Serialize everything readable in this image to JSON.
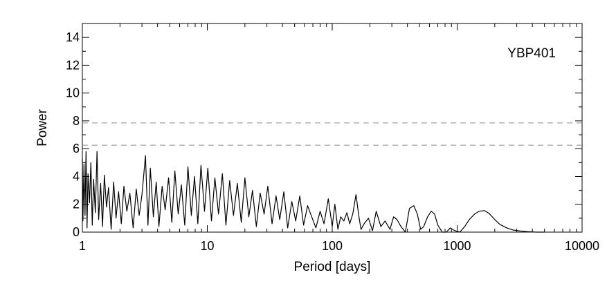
{
  "chart_data": {
    "type": "line",
    "title": "",
    "annotation": "YBP401",
    "xlabel": "Period [days]",
    "ylabel": "Power",
    "xscale": "log",
    "xlim": [
      1,
      10000
    ],
    "ylim": [
      0,
      15
    ],
    "xticks": [
      1,
      10,
      100,
      1000,
      10000
    ],
    "xtick_labels": [
      "1",
      "10",
      "100",
      "1000",
      "10000"
    ],
    "yticks": [
      0,
      2,
      4,
      6,
      8,
      10,
      12,
      14
    ],
    "ytick_labels": [
      "0",
      "2",
      "4",
      "6",
      "8",
      "10",
      "12",
      "14"
    ],
    "threshold_lines": [
      7.85,
      6.25
    ],
    "threshold_color": "#999999",
    "line_color": "#000000",
    "series": [
      {
        "x": [
          1.0,
          1.01,
          1.03,
          1.05,
          1.07,
          1.09,
          1.11,
          1.14,
          1.17,
          1.2,
          1.23,
          1.27,
          1.31,
          1.35,
          1.4,
          1.45,
          1.5,
          1.56,
          1.62,
          1.7,
          1.78,
          1.86,
          1.95,
          2.05,
          2.15,
          2.27,
          2.4,
          2.55,
          2.7,
          2.85,
          3.0,
          3.2,
          3.35,
          3.5,
          3.7,
          3.9,
          4.1,
          4.35,
          4.6,
          4.9,
          5.2,
          5.5,
          5.85,
          6.2,
          6.6,
          7.0,
          7.45,
          7.9,
          8.4,
          8.9,
          9.5,
          10.1,
          10.8,
          11.5,
          12.3,
          13.2,
          14.1,
          15.1,
          16.2,
          17.4,
          18.7,
          20.0,
          21.5,
          23.0,
          24.7,
          26.5,
          28.5,
          30.5,
          33.0,
          35.5,
          38.0,
          41.0,
          44.0,
          47.5,
          51.0,
          55.0,
          59.0,
          63.5,
          68.5,
          74.0,
          80.0,
          86.0,
          93.0,
          100.0,
          105.0,
          111.0,
          117.0,
          124.0,
          131.0,
          138.0,
          146.0,
          155.0,
          163.0,
          170.0,
          180.0,
          195.0,
          210.0,
          225.0,
          245.0,
          265.0,
          290.0,
          310.0,
          330.0,
          355.0,
          385.0,
          415.0,
          450.0,
          480.0,
          510.0,
          540.0,
          580.0,
          620.0,
          660.0,
          700.0,
          760.0,
          820.0,
          880.0,
          960.0,
          1050.0,
          1150.0,
          1250.0,
          1380.0,
          1500.0,
          1650.0,
          1800.0,
          2000.0,
          2200.0,
          2500.0,
          2800.0,
          3200.0,
          3700.0,
          4300.0,
          5000.0
        ],
        "y": [
          5.3,
          0.8,
          4.9,
          1.2,
          5.8,
          0.3,
          4.2,
          2.1,
          5.0,
          0.5,
          3.8,
          1.4,
          5.8,
          0.9,
          3.5,
          0.4,
          4.1,
          1.8,
          3.2,
          0.2,
          3.6,
          1.0,
          2.9,
          0.6,
          3.3,
          1.5,
          2.8,
          0.3,
          3.1,
          1.2,
          2.7,
          5.5,
          0.5,
          4.6,
          1.1,
          3.6,
          0.4,
          3.3,
          1.6,
          3.9,
          0.7,
          4.4,
          1.3,
          3.4,
          0.5,
          4.7,
          1.2,
          4.0,
          0.6,
          4.8,
          1.5,
          4.6,
          0.8,
          3.9,
          1.3,
          4.2,
          0.5,
          3.7,
          1.2,
          3.5,
          0.7,
          3.9,
          1.1,
          3.0,
          0.4,
          2.8,
          1.3,
          3.3,
          0.6,
          2.6,
          0.9,
          2.9,
          0.3,
          2.2,
          0.8,
          2.6,
          0.5,
          1.9,
          1.1,
          0.3,
          1.5,
          0.6,
          2.4,
          0.4,
          2.0,
          0.2,
          1.1,
          0.8,
          1.4,
          0.6,
          1.3,
          2.7,
          1.2,
          0.2,
          0.6,
          1.0,
          0.1,
          1.5,
          0.4,
          0.8,
          0.2,
          1.1,
          0.9,
          0.4,
          0.0,
          1.7,
          1.9,
          1.3,
          0.2,
          0.4,
          1.1,
          1.5,
          1.3,
          0.5,
          0.0,
          0.0,
          0.3,
          0.1,
          0.0,
          0.4,
          0.9,
          1.3,
          1.5,
          1.55,
          1.35,
          0.9,
          0.55,
          0.3,
          0.15,
          0.08,
          0.03,
          0.0,
          0.0
        ]
      }
    ],
    "grid": false,
    "legend": ""
  }
}
